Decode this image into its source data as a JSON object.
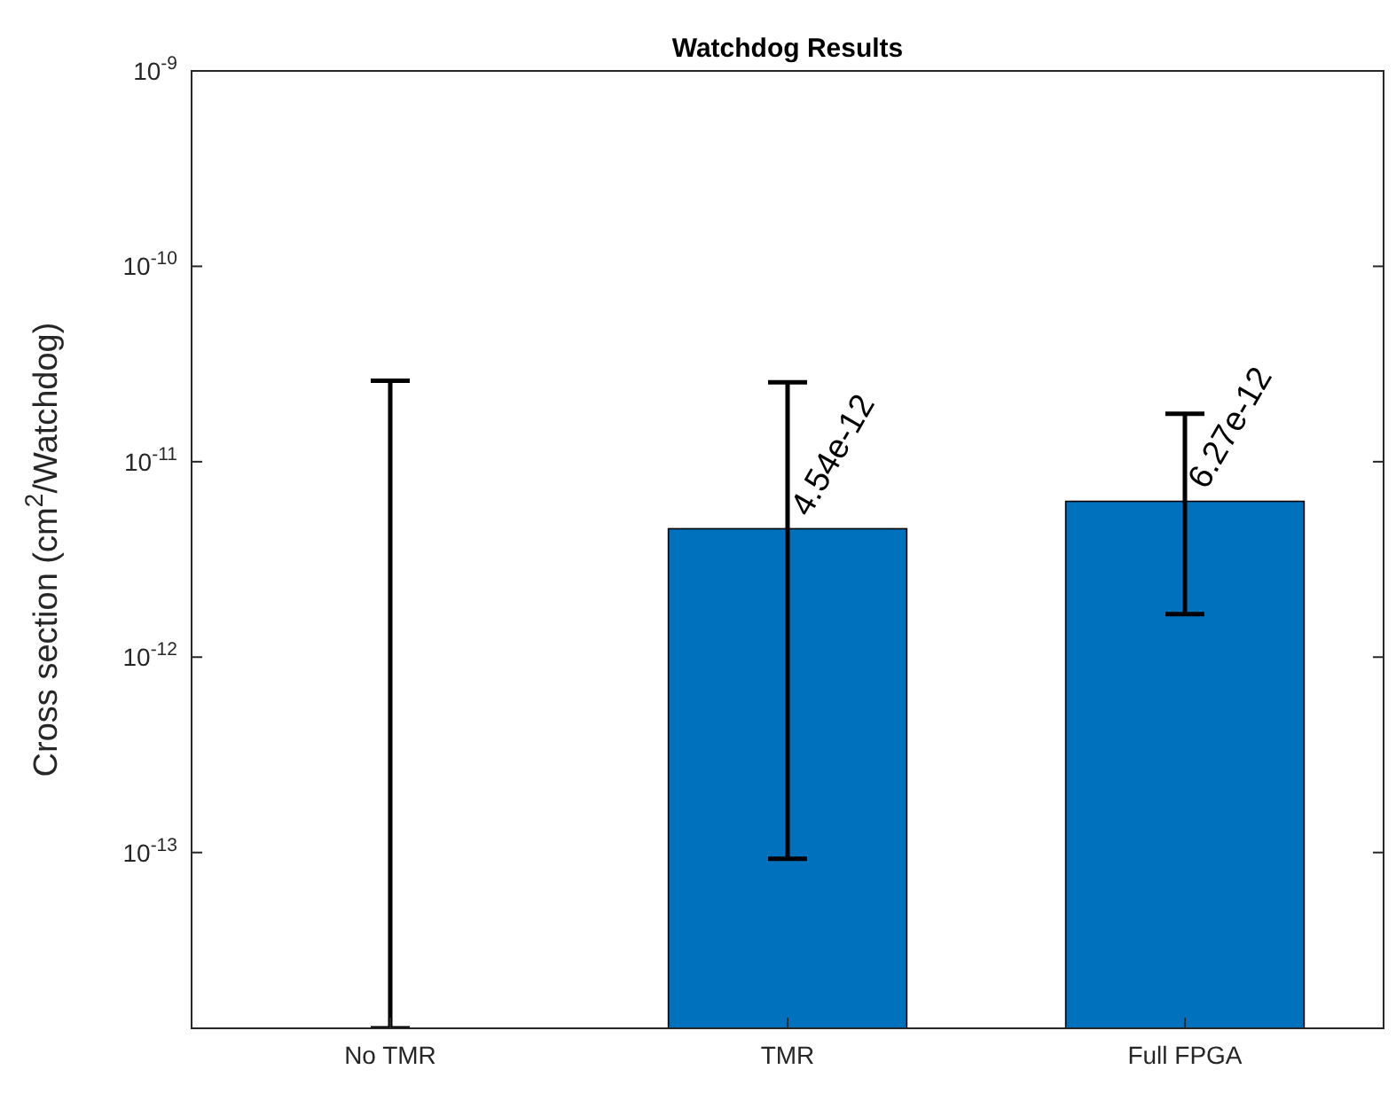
{
  "chart_data": {
    "type": "bar",
    "title": "Watchdog Results",
    "ylabel": "Cross section (cm$^{2}$/Watchdog)",
    "categories": [
      "No TMR",
      "TMR",
      "Full FPGA"
    ],
    "values": [
      1.26e-14,
      4.54e-12,
      6.27e-12
    ],
    "errors": [
      [
        1.26e-14,
        2.6e-11
      ],
      [
        9.3e-14,
        2.55e-11
      ],
      [
        1.66e-12,
        1.76e-11
      ]
    ],
    "value_labels": [
      null,
      "4.54e-12",
      "6.27e-12"
    ],
    "color": "#0072bd",
    "log": true,
    "ylim": [
      1.26e-14,
      1e-09
    ],
    "yticks": [
      {
        "value": 1e-13,
        "label": "10$^{-13}$"
      },
      {
        "value": 1e-12,
        "label": "10$^{-12}$"
      },
      {
        "value": 1e-11,
        "label": "10$^{-11}$"
      },
      {
        "value": 1e-10,
        "label": "10$^{-10}$"
      },
      {
        "value": 1e-09,
        "label": "10$^{-9}$"
      }
    ],
    "grid": false
  }
}
